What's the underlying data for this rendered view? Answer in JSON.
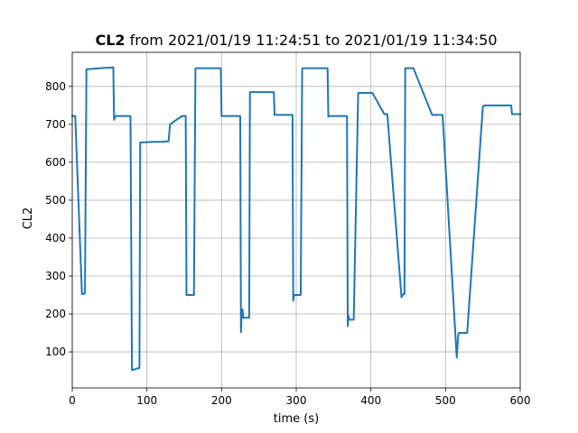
{
  "chart_data": {
    "type": "line",
    "title_prefix": "CL2",
    "title_suffix": " from 2021/01/19 11:24:51 to 2021/01/19 11:34:50",
    "xlabel": "time (s)",
    "ylabel": "CL2",
    "xlim": [
      0,
      600
    ],
    "ylim": [
      5,
      890
    ],
    "x_ticks": [
      {
        "value": 0,
        "label": "0"
      },
      {
        "value": 100,
        "label": "100"
      },
      {
        "value": 200,
        "label": "200"
      },
      {
        "value": 300,
        "label": "300"
      },
      {
        "value": 400,
        "label": "400"
      },
      {
        "value": 500,
        "label": "500"
      },
      {
        "value": 600,
        "label": "600"
      }
    ],
    "y_ticks": [
      {
        "value": 100,
        "label": "100"
      },
      {
        "value": 200,
        "label": "200"
      },
      {
        "value": 300,
        "label": "300"
      },
      {
        "value": 400,
        "label": "400"
      },
      {
        "value": 500,
        "label": "500"
      },
      {
        "value": 600,
        "label": "600"
      },
      {
        "value": 700,
        "label": "700"
      },
      {
        "value": 800,
        "label": "800"
      }
    ],
    "grid": true,
    "series": [
      {
        "color": "#1f77b4",
        "x": [
          0,
          3,
          4,
          13,
          14,
          15,
          16,
          17,
          19,
          37,
          55,
          56,
          58,
          76,
          78,
          80,
          81,
          88,
          89,
          90,
          91,
          108,
          118,
          127,
          128,
          129,
          131,
          147,
          149,
          151,
          152,
          153,
          162,
          163,
          165,
          166,
          197,
          199,
          200,
          201,
          222,
          224,
          225,
          226,
          227,
          228,
          229,
          234,
          235,
          236,
          237,
          238,
          247,
          268,
          270,
          271,
          272,
          292,
          294,
          295,
          296,
          297,
          305,
          306,
          308,
          309,
          335,
          342,
          343,
          344,
          345,
          366,
          368,
          369,
          370,
          371,
          372,
          375,
          376,
          377,
          383,
          384,
          386,
          387,
          402,
          418,
          420,
          421,
          422,
          441,
          443,
          444,
          445,
          446,
          453,
          454,
          456,
          457,
          482,
          492,
          494,
          495,
          496,
          515,
          517,
          518,
          519,
          520,
          521,
          522,
          529,
          550,
          551,
          552,
          553,
          571,
          588,
          589,
          590,
          600
        ],
        "y": [
          722,
          722,
          722,
          252,
          253,
          253,
          254,
          254,
          845,
          848,
          850,
          712,
          722,
          722,
          722,
          52,
          52,
          57,
          57,
          57,
          652,
          654,
          654,
          655,
          655,
          655,
          700,
          722,
          722,
          722,
          722,
          250,
          250,
          250,
          847,
          848,
          848,
          847,
          722,
          722,
          722,
          722,
          722,
          152,
          212,
          212,
          190,
          190,
          190,
          190,
          190,
          785,
          785,
          785,
          785,
          725,
          725,
          725,
          725,
          725,
          235,
          250,
          250,
          250,
          847,
          848,
          848,
          848,
          720,
          722,
          722,
          722,
          722,
          168,
          195,
          185,
          185,
          185,
          185,
          185,
          783,
          783,
          783,
          783,
          783,
          727,
          727,
          727,
          727,
          244,
          252,
          252,
          252,
          848,
          848,
          848,
          848,
          848,
          725,
          725,
          725,
          725,
          725,
          85,
          145,
          150,
          150,
          150,
          150,
          150,
          150,
          748,
          748,
          750,
          750,
          750,
          750,
          727,
          727,
          727
        ]
      }
    ]
  }
}
